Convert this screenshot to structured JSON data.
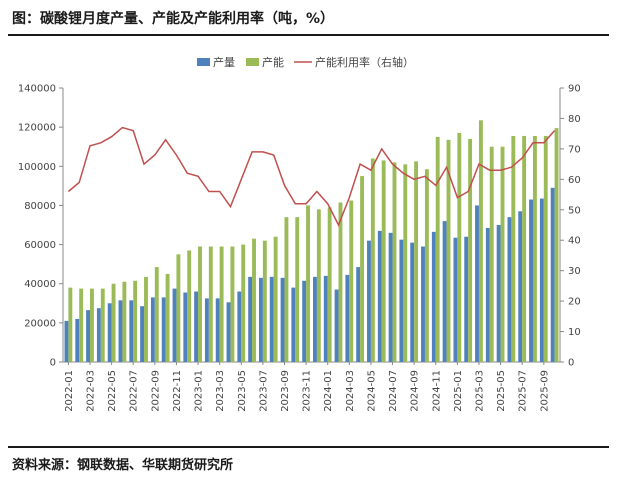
{
  "header": {
    "title": "图：碳酸锂月度产量、产能及产能利用率（吨，%）"
  },
  "footer": {
    "source": "资料来源：钢联数据、华联期货研究所"
  },
  "colors": {
    "production": "#4f81bd",
    "capacity": "#9bbb59",
    "utilization": "#c0504d",
    "axis": "#888888"
  },
  "chart_data": {
    "type": "bar",
    "title": "碳酸锂月度产量、产能及产能利用率（吨，%）",
    "xlabel": "",
    "ylabel": "",
    "ylim": [
      0,
      140000
    ],
    "y_ticks": [
      "0",
      "20000",
      "40000",
      "60000",
      "80000",
      "100000",
      "120000",
      "140000"
    ],
    "y2lim": [
      0,
      90
    ],
    "y2_ticks": [
      "0",
      "10",
      "20",
      "30",
      "40",
      "50",
      "60",
      "70",
      "80",
      "90"
    ],
    "x_tick_labels": [
      "2022-01",
      "2022-03",
      "2022-05",
      "2022-07",
      "2022-09",
      "2022-11",
      "2023-01",
      "2023-03",
      "2023-05",
      "2023-07",
      "2023-09",
      "2023-11",
      "2024-01",
      "2024-03",
      "2024-05",
      "2024-07",
      "2024-09",
      "2024-11",
      "2025-01",
      "2025-03",
      "2025-05",
      "2025-07",
      "2025-09"
    ],
    "categories": [
      "2022-01",
      "2022-02",
      "2022-03",
      "2022-04",
      "2022-05",
      "2022-06",
      "2022-07",
      "2022-08",
      "2022-09",
      "2022-10",
      "2022-11",
      "2022-12",
      "2023-01",
      "2023-02",
      "2023-03",
      "2023-04",
      "2023-05",
      "2023-06",
      "2023-07",
      "2023-08",
      "2023-09",
      "2023-10",
      "2023-11",
      "2023-12",
      "2024-01",
      "2024-02",
      "2024-03",
      "2024-04",
      "2024-05",
      "2024-06",
      "2024-07",
      "2024-08",
      "2024-09",
      "2024-10",
      "2024-11",
      "2024-12",
      "2025-01",
      "2025-02",
      "2025-03",
      "2025-04",
      "2025-05",
      "2025-06",
      "2025-07",
      "2025-08",
      "2025-09",
      "2025-10"
    ],
    "legend": [
      "产量",
      "产能",
      "产能利用率（右轴）"
    ],
    "series": [
      {
        "name": "产量",
        "axis": "left",
        "kind": "bar",
        "values": [
          21000,
          22000,
          26500,
          27500,
          30000,
          31500,
          31500,
          28500,
          33000,
          33000,
          37500,
          35500,
          36000,
          32500,
          32500,
          30500,
          36000,
          43500,
          43000,
          43500,
          43000,
          38000,
          41500,
          43500,
          44000,
          37000,
          44500,
          48500,
          62000,
          67000,
          66000,
          62500,
          61000,
          59000,
          66500,
          72000,
          63500,
          64000,
          80000,
          68500,
          70000,
          74000,
          77000,
          83000,
          83500,
          89000
        ]
      },
      {
        "name": "产能",
        "axis": "left",
        "kind": "bar",
        "values": [
          38000,
          37500,
          37500,
          37500,
          40000,
          41000,
          41500,
          43500,
          48500,
          45000,
          55000,
          57000,
          59000,
          59000,
          59000,
          59000,
          60000,
          63000,
          62000,
          64000,
          74000,
          74000,
          80000,
          78000,
          79000,
          81500,
          82500,
          95000,
          104000,
          103000,
          102000,
          101000,
          102500,
          98500,
          115000,
          113500,
          117000,
          114000,
          123500,
          110000,
          110000,
          115500,
          115500,
          115500,
          115500,
          119500
        ]
      },
      {
        "name": "产能利用率（右轴）",
        "axis": "right",
        "kind": "line",
        "values": [
          56,
          59,
          71,
          72,
          74,
          77,
          76,
          65,
          68,
          73,
          68,
          62,
          61,
          56,
          56,
          51,
          60,
          69,
          69,
          68,
          58,
          52,
          52,
          56,
          52,
          45,
          54,
          65,
          63,
          70,
          65,
          62,
          60,
          61,
          58,
          64,
          54,
          56,
          65,
          63,
          63,
          64,
          67,
          72,
          72,
          76
        ]
      }
    ]
  }
}
